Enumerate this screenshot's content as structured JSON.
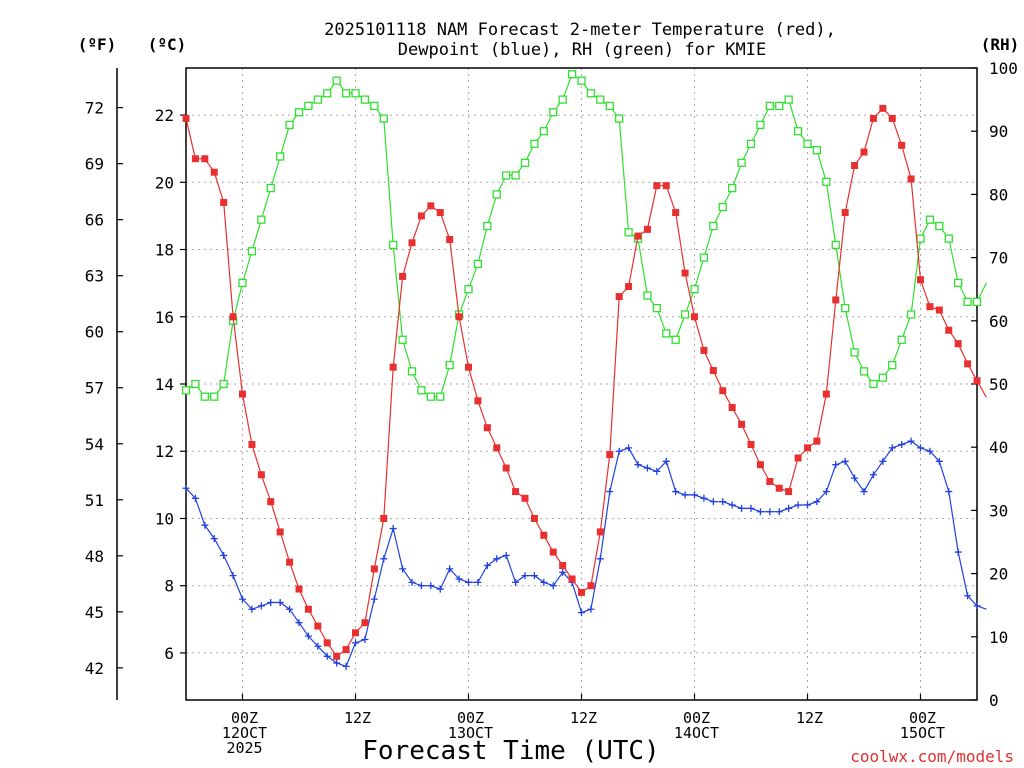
{
  "chart_data": {
    "type": "line",
    "title_lines": [
      "2025101118 NAM Forecast 2-meter Temperature (red),",
      "Dewpoint (blue), RH (green) for KMIE"
    ],
    "xlabel": "Forecast Time (UTC)",
    "credit": "coolwx.com/models",
    "units": {
      "left_f": "(ºF)",
      "left_c": "(ºC)",
      "right_rh": "(RH)"
    },
    "x_unit": "forecast hour from 2025-10-11 18Z",
    "xlim": [
      0,
      84
    ],
    "x_ticks": [
      {
        "x": 6,
        "lines": [
          "00Z",
          "12OCT",
          "2025"
        ]
      },
      {
        "x": 18,
        "lines": [
          "12Z"
        ]
      },
      {
        "x": 30,
        "lines": [
          "00Z",
          "13OCT"
        ]
      },
      {
        "x": 42,
        "lines": [
          "12Z"
        ]
      },
      {
        "x": 54,
        "lines": [
          "00Z",
          "14OCT"
        ]
      },
      {
        "x": 66,
        "lines": [
          "12Z"
        ]
      },
      {
        "x": 78,
        "lines": [
          "00Z",
          "15OCT"
        ]
      }
    ],
    "y_celsius": {
      "ylim": [
        4.6,
        23.4
      ],
      "ticks": [
        6,
        8,
        10,
        12,
        14,
        16,
        18,
        20,
        22
      ]
    },
    "y_fahrenheit": {
      "ticks": [
        42,
        45,
        48,
        51,
        54,
        57,
        60,
        63,
        66,
        69,
        72
      ]
    },
    "y_rh": {
      "ylim": [
        0,
        100
      ],
      "ticks": [
        0,
        10,
        20,
        30,
        40,
        50,
        60,
        70,
        80,
        90,
        100
      ]
    },
    "series": [
      {
        "name": "2-meter Temperature",
        "unit": "C",
        "axis": "celsius",
        "color": "#e83030",
        "marker": "filled-square",
        "values": [
          21.9,
          20.7,
          20.7,
          20.3,
          19.4,
          16.0,
          13.7,
          12.2,
          11.3,
          10.5,
          9.6,
          8.7,
          7.9,
          7.3,
          6.8,
          6.3,
          5.9,
          6.1,
          6.6,
          6.9,
          8.5,
          10.0,
          14.5,
          17.2,
          18.2,
          19.0,
          19.3,
          19.1,
          18.3,
          16.0,
          14.5,
          13.5,
          12.7,
          12.1,
          11.5,
          10.8,
          10.6,
          10.0,
          9.5,
          9.0,
          8.6,
          8.2,
          7.8,
          8.0,
          9.6,
          11.9,
          16.6,
          16.9,
          18.4,
          18.6,
          19.9,
          19.9,
          19.1,
          17.3,
          16.0,
          15.0,
          14.4,
          13.8,
          13.3,
          12.8,
          12.2,
          11.6,
          11.1,
          10.9,
          10.8,
          11.8,
          12.1,
          12.3,
          13.7,
          16.5,
          19.1,
          20.5,
          20.9,
          21.9,
          22.2,
          21.9,
          21.1,
          20.1,
          17.1,
          16.3,
          16.2,
          15.6,
          15.2,
          14.6,
          14.1,
          13.6
        ]
      },
      {
        "name": "Dewpoint",
        "unit": "C",
        "axis": "celsius",
        "color": "#2040e0",
        "marker": "plus",
        "values": [
          10.9,
          10.6,
          9.8,
          9.4,
          8.9,
          8.3,
          7.6,
          7.3,
          7.4,
          7.5,
          7.5,
          7.3,
          6.9,
          6.5,
          6.2,
          5.9,
          5.7,
          5.6,
          6.3,
          6.4,
          7.6,
          8.8,
          9.7,
          8.5,
          8.1,
          8.0,
          8.0,
          7.9,
          8.5,
          8.2,
          8.1,
          8.1,
          8.6,
          8.8,
          8.9,
          8.1,
          8.3,
          8.3,
          8.1,
          8.0,
          8.4,
          8.1,
          7.2,
          7.3,
          8.8,
          10.8,
          12.0,
          12.1,
          11.6,
          11.5,
          11.4,
          11.7,
          10.8,
          10.7,
          10.7,
          10.6,
          10.5,
          10.5,
          10.4,
          10.3,
          10.3,
          10.2,
          10.2,
          10.2,
          10.3,
          10.4,
          10.4,
          10.5,
          10.8,
          11.6,
          11.7,
          11.2,
          10.8,
          11.3,
          11.7,
          12.1,
          12.2,
          12.3,
          12.1,
          12.0,
          11.7,
          10.8,
          9.0,
          7.7,
          7.4,
          7.3
        ]
      },
      {
        "name": "RH",
        "unit": "%",
        "axis": "rh",
        "color": "#30e030",
        "marker": "open-square",
        "values": [
          49,
          50,
          48,
          48,
          50,
          60,
          66,
          71,
          76,
          81,
          86,
          91,
          93,
          94,
          95,
          96,
          98,
          96,
          96,
          95,
          94,
          92,
          72,
          57,
          52,
          49,
          48,
          48,
          53,
          61,
          65,
          69,
          75,
          80,
          83,
          83,
          85,
          88,
          90,
          93,
          95,
          99,
          98,
          96,
          95,
          94,
          92,
          74,
          73,
          64,
          62,
          58,
          57,
          61,
          65,
          70,
          75,
          78,
          81,
          85,
          88,
          91,
          94,
          94,
          95,
          90,
          88,
          87,
          82,
          72,
          62,
          55,
          52,
          50,
          51,
          53,
          57,
          61,
          73,
          76,
          75,
          73,
          66,
          63,
          63,
          66
        ]
      }
    ]
  }
}
